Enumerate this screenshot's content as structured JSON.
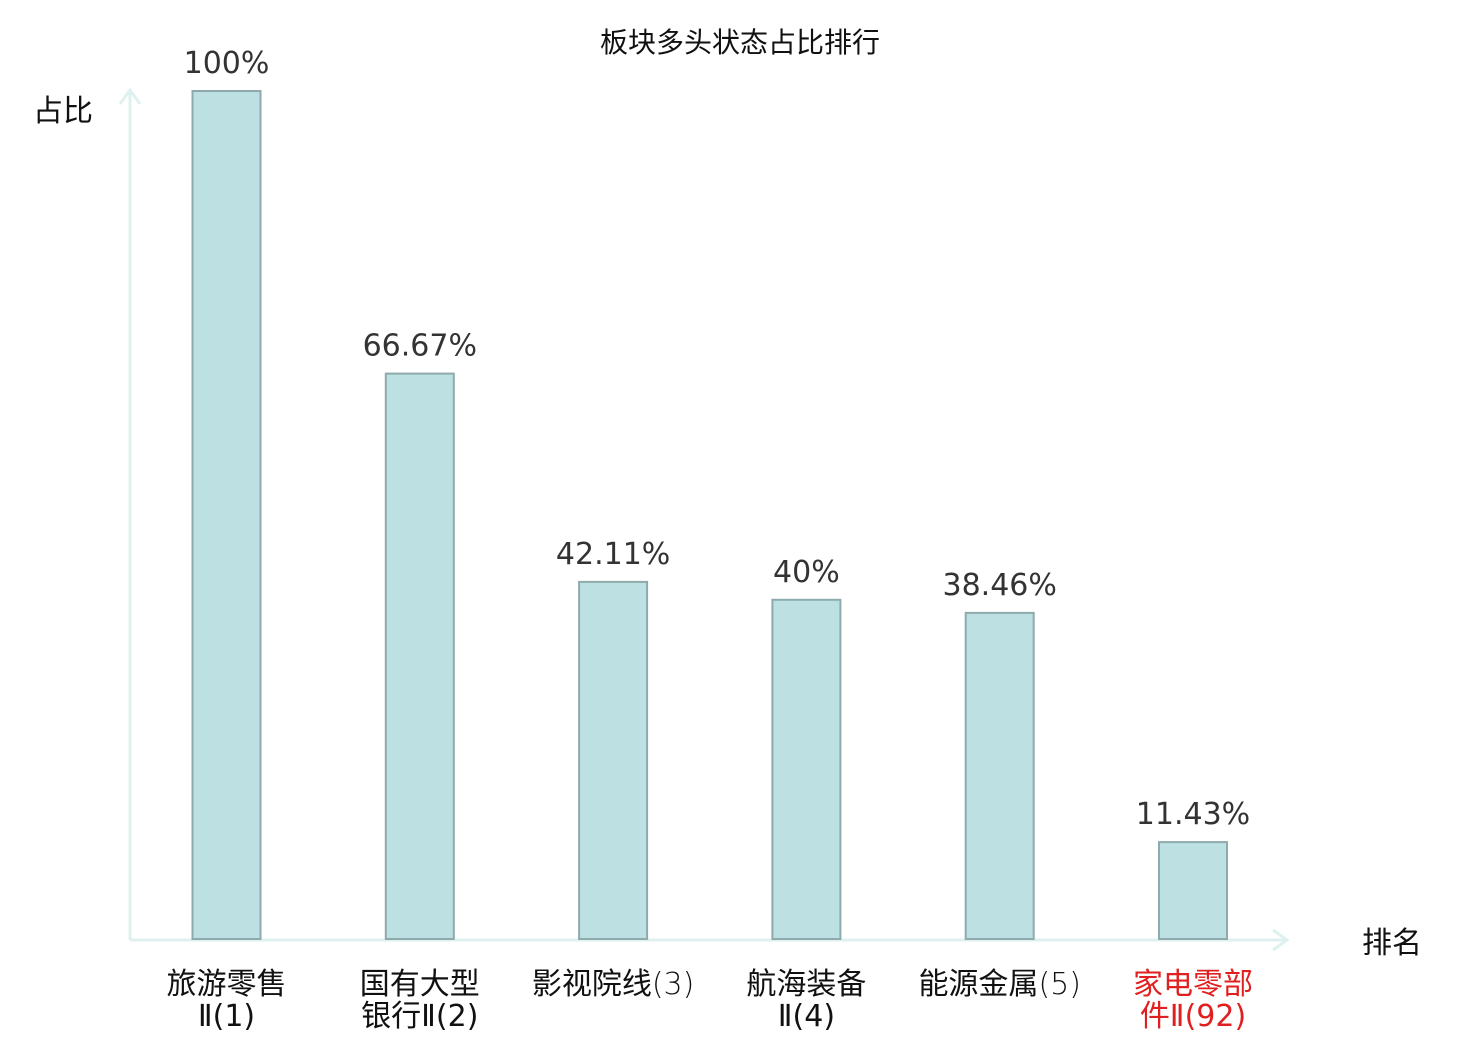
{
  "chart_data": {
    "type": "bar",
    "title": "板块多头状态占比排行",
    "ylabel": "占比",
    "xlabel": "排名",
    "ylim": [
      0,
      100
    ],
    "value_suffix": "%",
    "categories": [
      {
        "name": "旅游零售",
        "rank": "Ⅱ(1)",
        "highlight": false
      },
      {
        "name": "国有大型",
        "rank": "银行Ⅱ(2)",
        "highlight": false
      },
      {
        "name": "影视院线",
        "rank": "(3)",
        "highlight": false
      },
      {
        "name": "航海装备",
        "rank": "Ⅱ(4)",
        "highlight": false
      },
      {
        "name": "能源金属",
        "rank": "(5)",
        "highlight": false
      },
      {
        "name": "家电零部",
        "rank": "件Ⅱ(92)",
        "highlight": true
      }
    ],
    "values": [
      100,
      66.67,
      42.11,
      40,
      38.46,
      11.43
    ],
    "data_labels": [
      "100%",
      "66.67%",
      "42.11%",
      "40%",
      "38.46%",
      "11.43%"
    ],
    "grid": false
  },
  "colors": {
    "bar_fill": "#bde0e2",
    "bar_stroke": "#8eaaad",
    "axis": "#dff1ef",
    "label_text": "#333333",
    "category_text": "#111111",
    "highlight_text": "#e02020"
  }
}
